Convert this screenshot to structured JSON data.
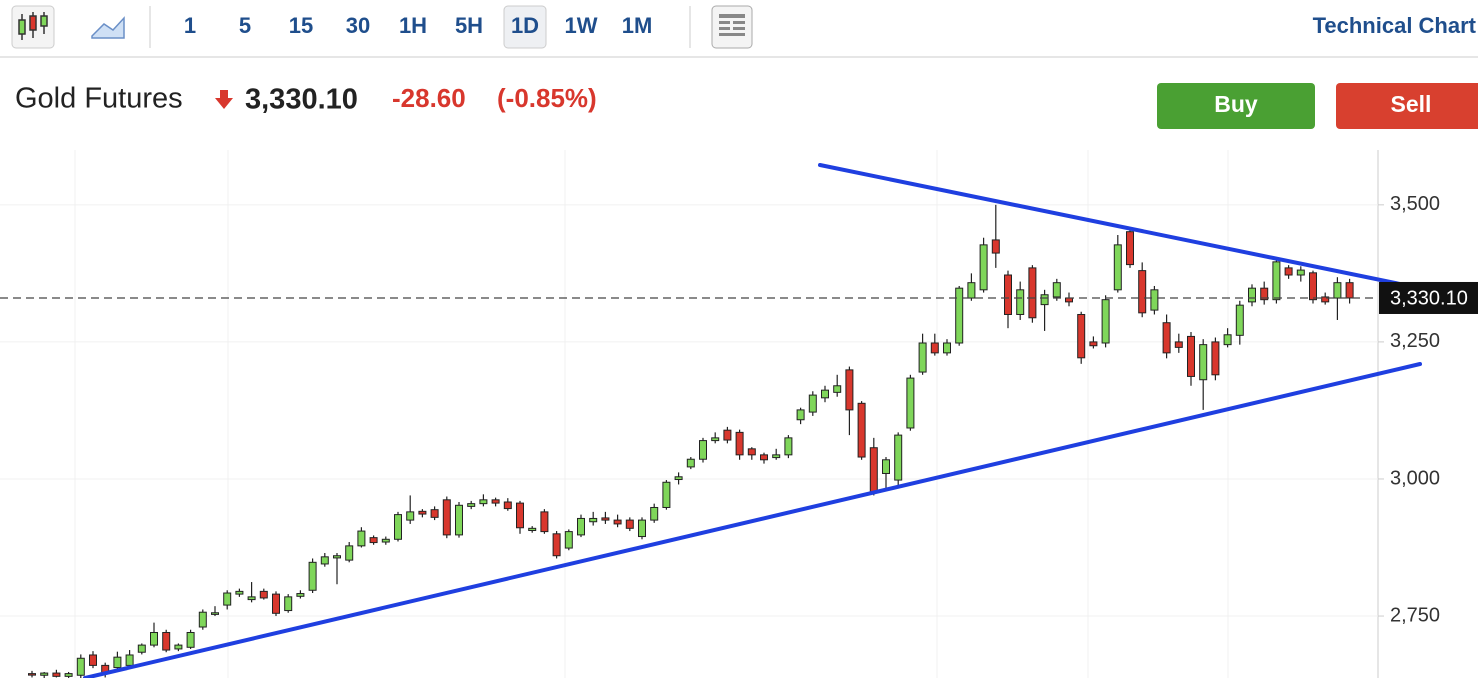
{
  "toolbar": {
    "intervals": [
      "1",
      "5",
      "15",
      "30",
      "1H",
      "5H",
      "1D",
      "1W",
      "1M"
    ],
    "active": 6,
    "link": "Technical Chart"
  },
  "header": {
    "instrument": "Gold Futures",
    "price": "3,330.10",
    "change": "-28.60",
    "change_percent": "(-0.85%)",
    "buy": "Buy",
    "sell": "Sell"
  },
  "chart_data": {
    "type": "candlestick",
    "open": [
      2645,
      2642,
      2646,
      2640,
      2642,
      2679,
      2660,
      2656,
      2660,
      2684,
      2697,
      2720,
      2690,
      2693,
      2730,
      2753,
      2770,
      2790,
      2780,
      2795,
      2790,
      2760,
      2786,
      2797,
      2845,
      2856,
      2852,
      2878,
      2893,
      2885,
      2890,
      2925,
      2941,
      2944,
      2962,
      2898,
      2950,
      2955,
      2962,
      2958,
      2956,
      2906,
      2940,
      2900,
      2874,
      2898,
      2922,
      2929,
      2925,
      2925,
      2895,
      2925,
      2948,
      2999,
      3022,
      3036,
      3070,
      3089,
      3085,
      3055,
      3044,
      3039,
      3044,
      3108,
      3122,
      3148,
      3158,
      3199,
      3138,
      3057,
      3010,
      2998,
      3093,
      3195,
      3248,
      3230,
      3248,
      3330,
      3345,
      3436,
      3372,
      3300,
      3385,
      3318,
      3332,
      3330,
      3300,
      3250,
      3248,
      3345,
      3451,
      3380,
      3308,
      3285,
      3250,
      3260,
      3181,
      3250,
      3245,
      3262,
      3323,
      3348,
      3327,
      3385,
      3372,
      3376,
      3332,
      3330,
      3358
    ],
    "high": [
      2650,
      2648,
      2652,
      2648,
      2680,
      2686,
      2665,
      2685,
      2688,
      2700,
      2738,
      2725,
      2700,
      2725,
      2762,
      2768,
      2797,
      2800,
      2812,
      2800,
      2795,
      2790,
      2797,
      2855,
      2865,
      2865,
      2885,
      2912,
      2897,
      2895,
      2940,
      2970,
      2945,
      2950,
      2968,
      2958,
      2960,
      2972,
      2966,
      2965,
      2960,
      2914,
      2945,
      2905,
      2908,
      2935,
      2940,
      2940,
      2935,
      2930,
      2930,
      2955,
      2998,
      3012,
      3040,
      3075,
      3085,
      3095,
      3090,
      3058,
      3048,
      3055,
      3080,
      3130,
      3160,
      3170,
      3190,
      3205,
      3142,
      3075,
      3040,
      3085,
      3190,
      3265,
      3265,
      3255,
      3352,
      3375,
      3440,
      3500,
      3380,
      3360,
      3390,
      3345,
      3365,
      3340,
      3305,
      3260,
      3335,
      3445,
      3455,
      3395,
      3352,
      3300,
      3265,
      3268,
      3255,
      3258,
      3275,
      3325,
      3355,
      3360,
      3400,
      3390,
      3388,
      3380,
      3340,
      3368,
      3365
    ],
    "low": [
      2638,
      2635,
      2638,
      2636,
      2636,
      2655,
      2638,
      2650,
      2656,
      2680,
      2693,
      2684,
      2686,
      2690,
      2725,
      2750,
      2762,
      2785,
      2775,
      2780,
      2750,
      2756,
      2782,
      2792,
      2840,
      2808,
      2848,
      2875,
      2880,
      2880,
      2886,
      2918,
      2930,
      2925,
      2892,
      2893,
      2945,
      2950,
      2950,
      2942,
      2900,
      2902,
      2900,
      2855,
      2870,
      2894,
      2915,
      2918,
      2912,
      2905,
      2890,
      2920,
      2944,
      2990,
      3018,
      3030,
      3065,
      3065,
      3035,
      3035,
      3028,
      3035,
      3038,
      3100,
      3115,
      3140,
      3150,
      3080,
      3035,
      2970,
      2980,
      2985,
      3088,
      3190,
      3225,
      3225,
      3243,
      3325,
      3340,
      3385,
      3275,
      3290,
      3285,
      3270,
      3325,
      3315,
      3210,
      3238,
      3240,
      3340,
      3385,
      3295,
      3300,
      3220,
      3230,
      3170,
      3126,
      3180,
      3240,
      3245,
      3315,
      3318,
      3320,
      3365,
      3360,
      3320,
      3318,
      3290,
      3320
    ],
    "close": [
      2643,
      2646,
      2640,
      2645,
      2673,
      2660,
      2645,
      2675,
      2679,
      2697,
      2720,
      2688,
      2697,
      2720,
      2757,
      2756,
      2792,
      2795,
      2785,
      2783,
      2755,
      2785,
      2791,
      2848,
      2858,
      2860,
      2878,
      2905,
      2884,
      2890,
      2935,
      2940,
      2936,
      2930,
      2898,
      2952,
      2955,
      2962,
      2956,
      2946,
      2911,
      2910,
      2904,
      2860,
      2904,
      2928,
      2928,
      2925,
      2918,
      2910,
      2925,
      2948,
      2994,
      3004,
      3036,
      3070,
      3075,
      3071,
      3044,
      3044,
      3035,
      3044,
      3075,
      3126,
      3153,
      3162,
      3170,
      3126,
      3040,
      2976,
      3035,
      3080,
      3184,
      3248,
      3230,
      3248,
      3348,
      3358,
      3427,
      3412,
      3300,
      3345,
      3294,
      3336,
      3358,
      3323,
      3221,
      3243,
      3327,
      3427,
      3391,
      3303,
      3345,
      3230,
      3240,
      3187,
      3245,
      3190,
      3263,
      3317,
      3348,
      3327,
      3396,
      3372,
      3381,
      3327,
      3323,
      3358,
      3330.1
    ],
    "up_color": "#7fd65a",
    "down_color": "#d8372d",
    "ylim": [
      2637,
      3600
    ],
    "yticks": [
      {
        "value": 2750,
        "label": "2,750"
      },
      {
        "value": 3000,
        "label": "3,000"
      },
      {
        "value": 3250,
        "label": "3,250"
      },
      {
        "value": 3500,
        "label": "3,500"
      }
    ],
    "last_price": {
      "value": 3330.1,
      "label": "3,330.10"
    },
    "grid": true
  }
}
